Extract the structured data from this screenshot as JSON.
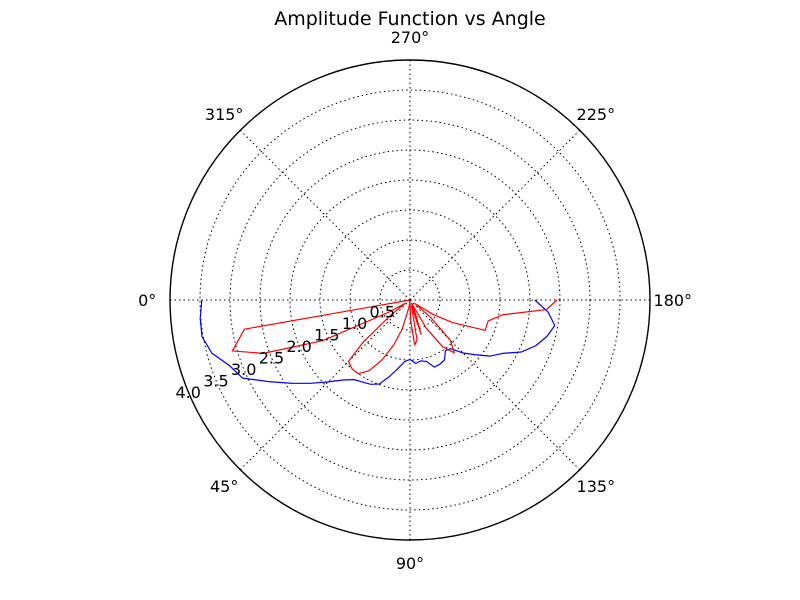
{
  "chart_data": {
    "type": "line",
    "projection": "polar",
    "title": "Amplitude Function vs Angle",
    "theta_direction": "clockwise",
    "theta_zero_location": "left",
    "angle_ticks": [
      "0°",
      "45°",
      "90°",
      "135°",
      "180°",
      "225°",
      "270°",
      "315°"
    ],
    "angle_tick_values": [
      0,
      45,
      90,
      135,
      180,
      225,
      270,
      315
    ],
    "radial_ticks": [
      "0.5",
      "1.0",
      "1.5",
      "2.0",
      "2.5",
      "3.0",
      "3.5",
      "4.0"
    ],
    "radial_tick_values": [
      0.5,
      1.0,
      1.5,
      2.0,
      2.5,
      3.0,
      3.5,
      4.0
    ],
    "rlim": [
      0,
      4.0
    ],
    "grid": true,
    "series": [
      {
        "color": "#0000ff",
        "points": [
          [
            0,
            3.47
          ],
          [
            5,
            3.51
          ],
          [
            10,
            3.52
          ],
          [
            15,
            3.42
          ],
          [
            20,
            3.2
          ],
          [
            25,
            3.08
          ],
          [
            30,
            2.72
          ],
          [
            35,
            2.42
          ],
          [
            40,
            2.16
          ],
          [
            45,
            1.93
          ],
          [
            50,
            1.74
          ],
          [
            55,
            1.62
          ],
          [
            60,
            1.58
          ],
          [
            65,
            1.55
          ],
          [
            70,
            1.49
          ],
          [
            75,
            1.32
          ],
          [
            80,
            1.16
          ],
          [
            85,
            1.03
          ],
          [
            90,
            0.99
          ],
          [
            95,
            1.06
          ],
          [
            100,
            1.03
          ],
          [
            105,
            1.06
          ],
          [
            110,
            1.19
          ],
          [
            115,
            1.18
          ],
          [
            120,
            1.15
          ],
          [
            125,
            1.03
          ],
          [
            130,
            1.06
          ],
          [
            135,
            1.25
          ],
          [
            140,
            1.42
          ],
          [
            145,
            1.63
          ],
          [
            150,
            1.78
          ],
          [
            155,
            2.05
          ],
          [
            160,
            2.23
          ],
          [
            165,
            2.36
          ],
          [
            170,
            2.45
          ],
          [
            175,
            2.31
          ],
          [
            180,
            2.08
          ]
        ]
      },
      {
        "color": "#ff0000",
        "points": [
          [
            0,
            0.0
          ],
          [
            10,
            2.8
          ],
          [
            16,
            3.08
          ],
          [
            20,
            2.6
          ],
          [
            25,
            1.6
          ],
          [
            30,
            0.4
          ],
          [
            34,
            0.1
          ],
          [
            38,
            0.4
          ],
          [
            42,
            1.05
          ],
          [
            45,
            1.45
          ],
          [
            50,
            1.5
          ],
          [
            55,
            1.5
          ],
          [
            60,
            1.36
          ],
          [
            65,
            1.1
          ],
          [
            70,
            0.8
          ],
          [
            75,
            0.5
          ],
          [
            82,
            0.12
          ],
          [
            88,
            0.02
          ],
          [
            92,
            0.35
          ],
          [
            96,
            0.75
          ],
          [
            100,
            0.68
          ],
          [
            104,
            0.1
          ],
          [
            108,
            0.6
          ],
          [
            112,
            0.25
          ],
          [
            116,
            0.06
          ],
          [
            120,
            0.55
          ],
          [
            125,
            0.95
          ],
          [
            130,
            1.15
          ],
          [
            135,
            0.95
          ],
          [
            140,
            0.45
          ],
          [
            144,
            0.1
          ],
          [
            148,
            0.45
          ],
          [
            152,
            0.8
          ],
          [
            158,
            1.35
          ],
          [
            165,
            1.35
          ],
          [
            171,
            1.57
          ],
          [
            176,
            2.28
          ],
          [
            180,
            2.45
          ]
        ]
      }
    ]
  }
}
